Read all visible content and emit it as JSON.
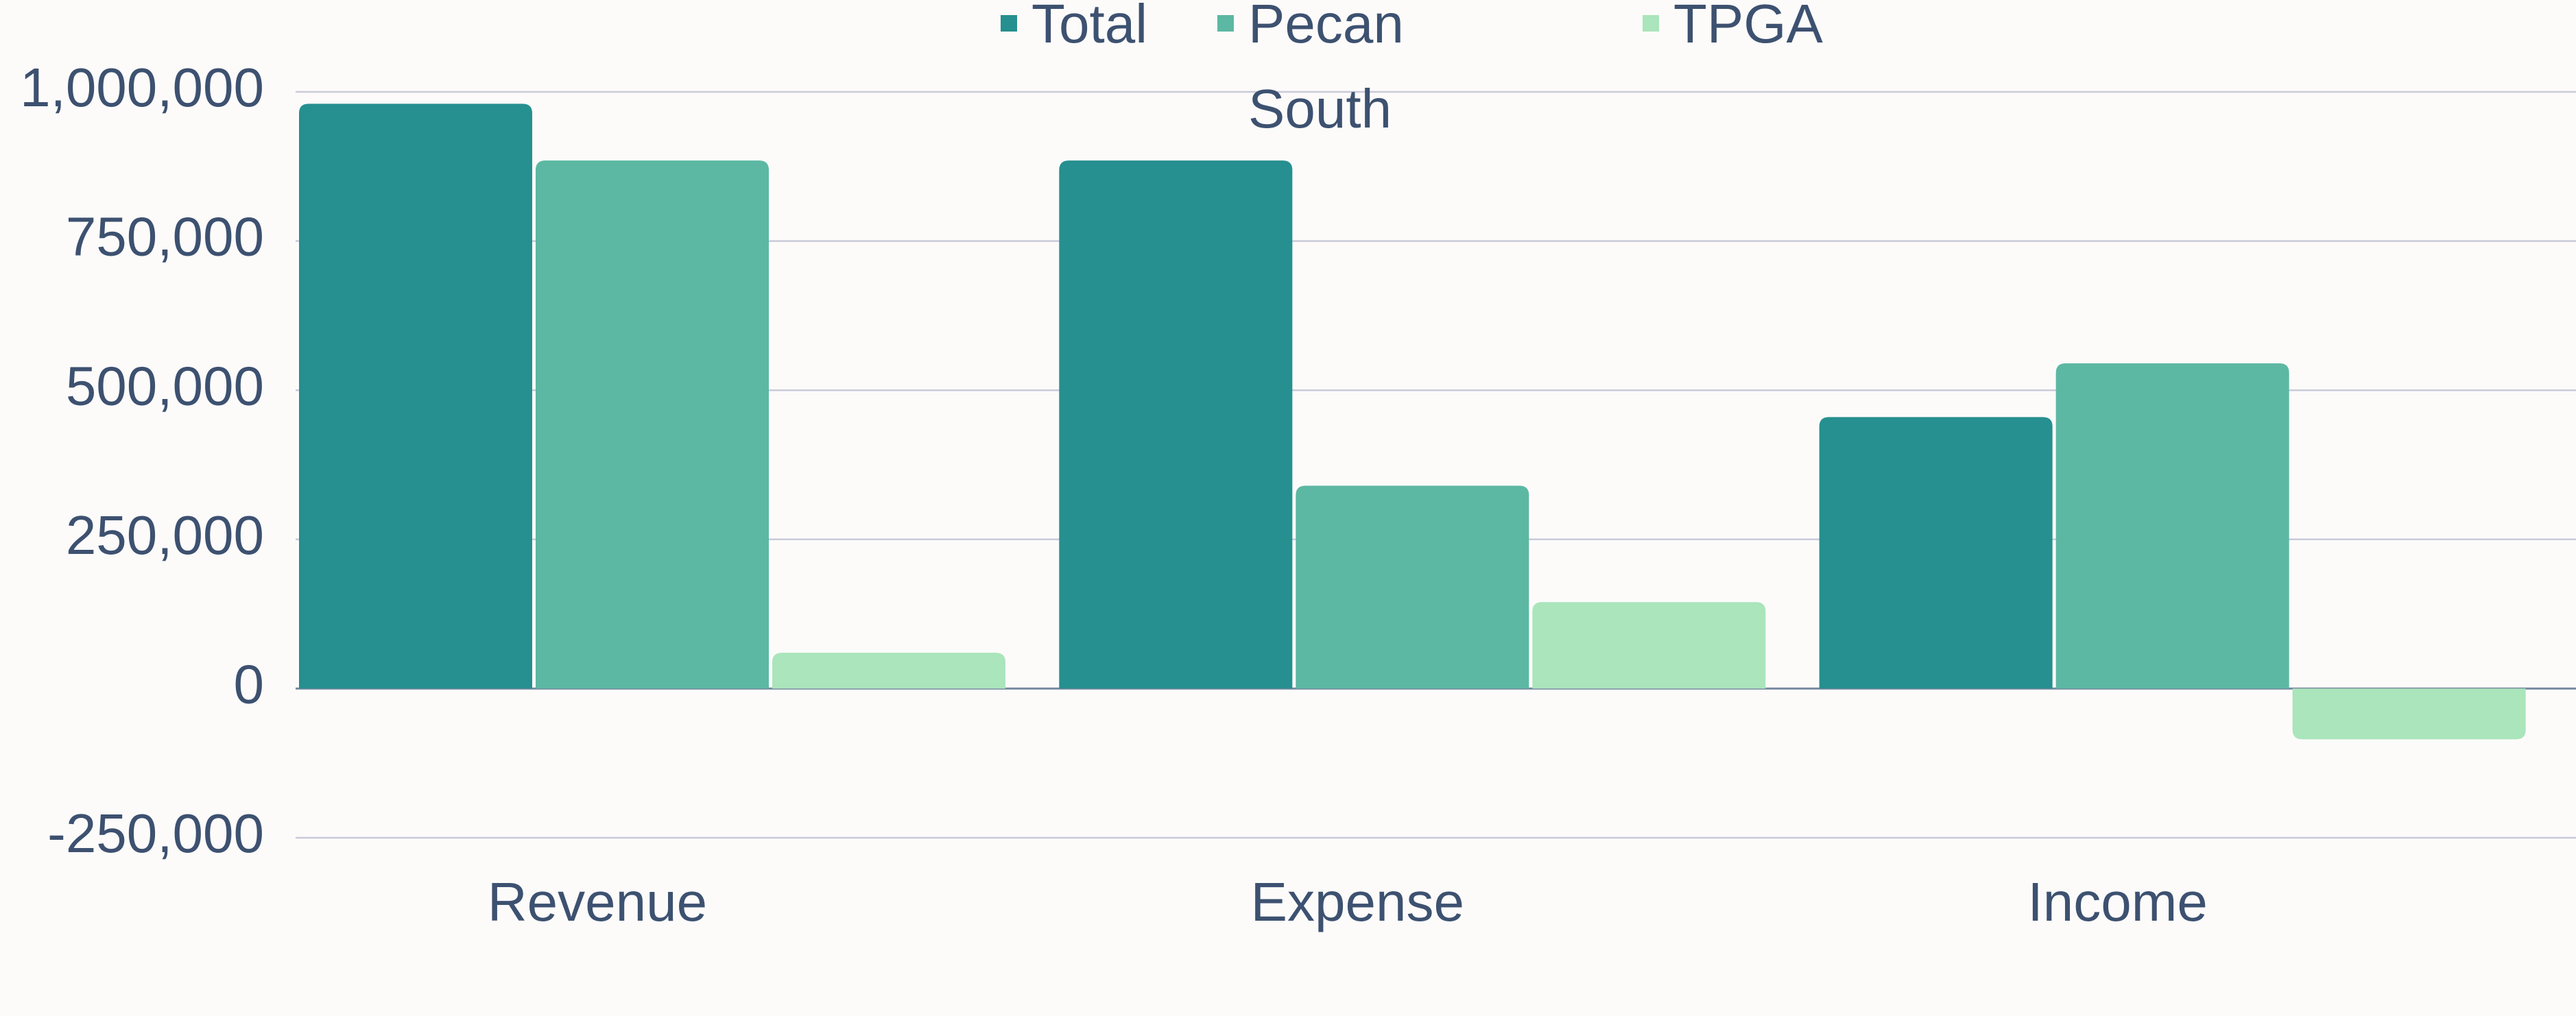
{
  "chart_data": {
    "type": "bar",
    "categories": [
      "Revenue",
      "Expense",
      "Income"
    ],
    "series": [
      {
        "name": "Total",
        "color": "#268f8f",
        "values": [
          980000,
          885000,
          455000
        ]
      },
      {
        "name": "Pecan South",
        "color": "#5cb8a3",
        "values": [
          885000,
          340000,
          545000
        ]
      },
      {
        "name": "TPGA",
        "color": "#aae5bb",
        "values": [
          60000,
          145000,
          -85000
        ]
      }
    ],
    "ylim": [
      -250000,
      1000000
    ],
    "yticks": [
      {
        "value": -250000,
        "label": "-250,000"
      },
      0,
      {
        "value": 250000,
        "label": "250,000"
      },
      {
        "value": 500000,
        "label": "500,000"
      },
      {
        "value": 750000,
        "label": "750,000"
      },
      {
        "value": 1000000,
        "label": "1,000,000"
      }
    ],
    "grid": true,
    "legend": "top"
  }
}
